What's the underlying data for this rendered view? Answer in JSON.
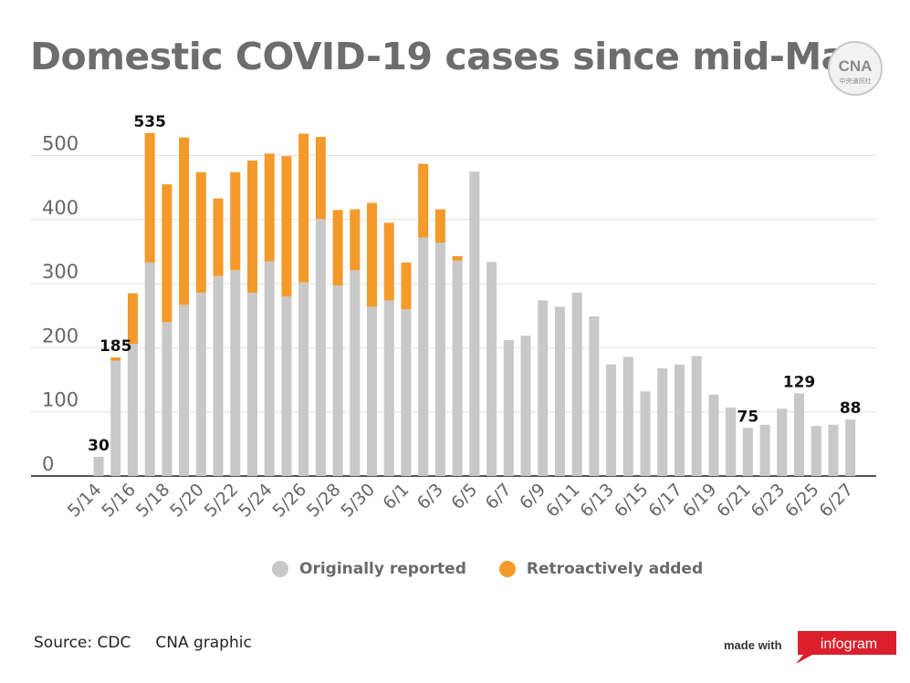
{
  "title": "Domestic COVID-19 cases since mid-May",
  "logo_text": "CNA",
  "logo_subtext": "中央通訊社",
  "legend": {
    "original": "Originally reported",
    "retro": "Retroactively added"
  },
  "source": "Source: CDC     CNA graphic",
  "made_with": "made with",
  "brand": "infogram",
  "colors": {
    "original": "#c8c8c8",
    "retro": "#f39a2b",
    "brand": "#d9202b"
  },
  "chart_data": {
    "type": "bar",
    "stacked": true,
    "title": "Domestic COVID-19 cases since mid-May",
    "ylim": [
      0,
      520
    ],
    "yticks": [
      0,
      100,
      200,
      300,
      400,
      500
    ],
    "grid": true,
    "legend_position": "bottom",
    "categories": [
      "5/14",
      "5/15",
      "5/16",
      "5/17",
      "5/18",
      "5/19",
      "5/20",
      "5/21",
      "5/22",
      "5/23",
      "5/24",
      "5/25",
      "5/26",
      "5/27",
      "5/28",
      "5/29",
      "5/30",
      "5/31",
      "6/1",
      "6/2",
      "6/3",
      "6/4",
      "6/5",
      "6/6",
      "6/7",
      "6/8",
      "6/9",
      "6/10",
      "6/11",
      "6/12",
      "6/13",
      "6/14",
      "6/15",
      "6/16",
      "6/17",
      "6/18",
      "6/19",
      "6/20",
      "6/21",
      "6/22",
      "6/23",
      "6/24",
      "6/25",
      "6/26",
      "6/27"
    ],
    "x_tick_labels": [
      "5/14",
      "5/16",
      "5/18",
      "5/20",
      "5/22",
      "5/24",
      "5/26",
      "5/28",
      "5/30",
      "6/1",
      "6/3",
      "6/5",
      "6/7",
      "6/9",
      "6/11",
      "6/13",
      "6/15",
      "6/17",
      "6/19",
      "6/21",
      "6/23",
      "6/25",
      "6/27"
    ],
    "series": [
      {
        "name": "Originally reported",
        "values": [
          30,
          180,
          206,
          333,
          240,
          267,
          286,
          312,
          321,
          286,
          335,
          280,
          302,
          401,
          297,
          321,
          264,
          274,
          260,
          372,
          364,
          336,
          475,
          334,
          212,
          219,
          274,
          264,
          286,
          249,
          174,
          186,
          132,
          168,
          174,
          187,
          127,
          107,
          75,
          80,
          105,
          129,
          78,
          80,
          88
        ]
      },
      {
        "name": "Retroactively added",
        "values": [
          0,
          5,
          79,
          202,
          215,
          261,
          188,
          121,
          153,
          206,
          168,
          219,
          232,
          128,
          118,
          95,
          162,
          121,
          73,
          115,
          52,
          7,
          0,
          0,
          0,
          0,
          0,
          0,
          0,
          0,
          0,
          0,
          0,
          0,
          0,
          0,
          0,
          0,
          0,
          0,
          0,
          0,
          0,
          0,
          0
        ]
      }
    ],
    "data_labels": [
      {
        "category": "5/14",
        "text": "30"
      },
      {
        "category": "5/15",
        "text": "185"
      },
      {
        "category": "5/17",
        "text": "535"
      },
      {
        "category": "6/21",
        "text": "75"
      },
      {
        "category": "6/24",
        "text": "129"
      },
      {
        "category": "6/27",
        "text": "88"
      }
    ]
  }
}
